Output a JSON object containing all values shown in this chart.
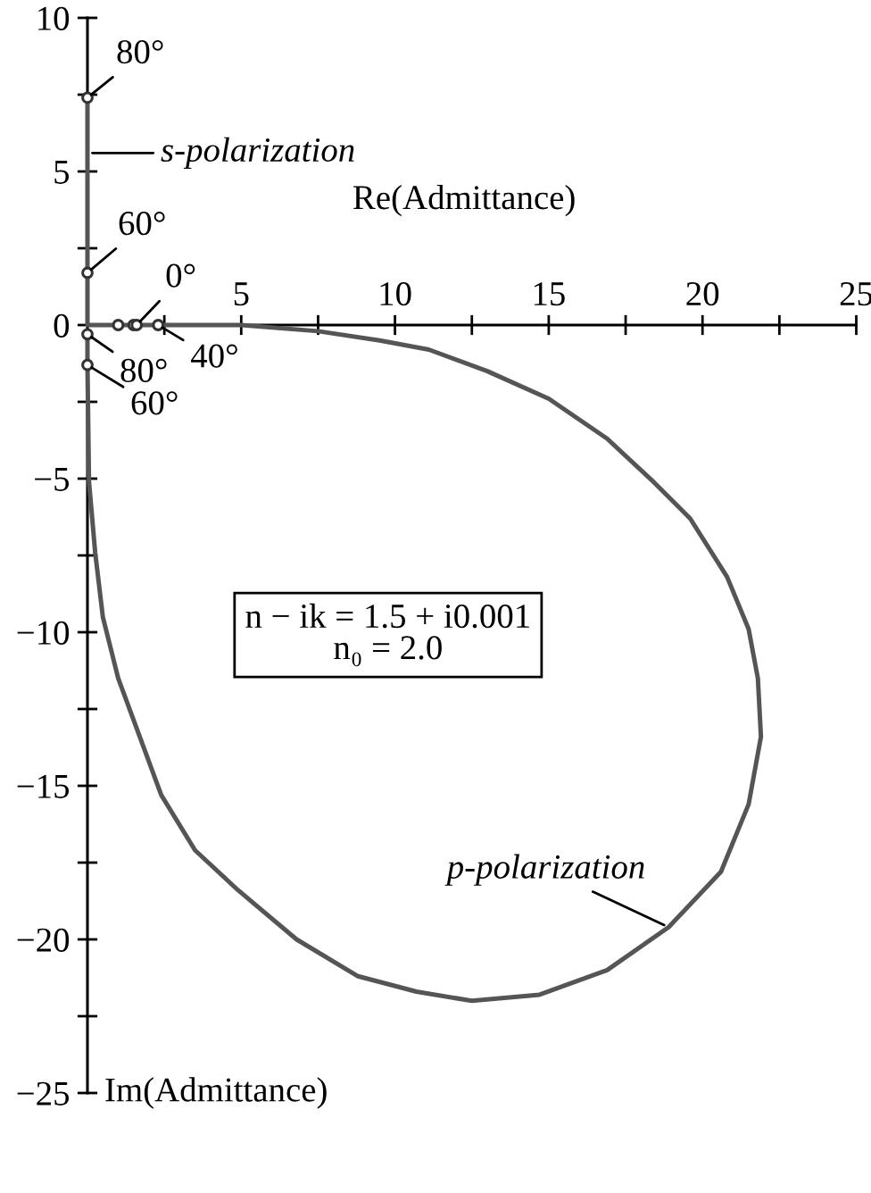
{
  "chart_data": {
    "type": "line",
    "xlabel": "Re(Admittance)",
    "ylabel": "Im(Admittance)",
    "xlim": [
      0,
      25
    ],
    "ylim": [
      -25,
      10
    ],
    "xticks": [
      {
        "value": 2.5,
        "label": null
      },
      5,
      {
        "value": 7.5,
        "label": null
      },
      10,
      {
        "value": 12.5,
        "label": null
      },
      15,
      {
        "value": 17.5,
        "label": null
      },
      20,
      {
        "value": 22.5,
        "label": null
      },
      25
    ],
    "yticks": [
      -25,
      {
        "value": -22.5,
        "label": null
      },
      -20,
      {
        "value": -17.5,
        "label": null
      },
      -15,
      {
        "value": -12.5,
        "label": null
      },
      -10,
      {
        "value": -7.5,
        "label": null
      },
      -5,
      {
        "value": -2.5,
        "label": null
      },
      0,
      {
        "value": 2.5,
        "label": null
      },
      5,
      {
        "value": 7.5,
        "label": null
      },
      10
    ],
    "series": [
      {
        "color": "#555555",
        "x": [
          1.5,
          1.0,
          0,
          0,
          0
        ],
        "values": [
          0,
          0,
          0,
          1.7,
          7.4
        ]
      },
      {
        "color": "#555555",
        "x": [
          1.6,
          2.3,
          3.5,
          5,
          7.5,
          9.5,
          11.1,
          13.0,
          15.0,
          16.9,
          18.4,
          19.6,
          20.8,
          21.5,
          21.8,
          21.9,
          21.5,
          20.6,
          18.9,
          16.9,
          14.7,
          12.5,
          10.7,
          8.8,
          6.8,
          4.9,
          3.5,
          2.4,
          1.0,
          0.5,
          0.25,
          0.05,
          0,
          0
        ],
        "values": [
          0,
          0,
          0,
          0,
          -0.2,
          -0.5,
          -0.8,
          -1.5,
          -2.4,
          -3.7,
          -5.1,
          -6.3,
          -8.2,
          -9.9,
          -11.5,
          -13.4,
          -15.6,
          -17.8,
          -19.6,
          -21.0,
          -21.8,
          -22.0,
          -21.7,
          -21.2,
          -20.0,
          -18.4,
          -17.1,
          -15.3,
          -11.5,
          -9.5,
          -7.4,
          -5.1,
          -1.3,
          -0.3
        ]
      },
      {
        "type": "scatter",
        "color": "#333333",
        "marker": "circle",
        "x": [
          1.5,
          1.0,
          1.6,
          2.3,
          0,
          0,
          0,
          0
        ],
        "values": [
          0,
          0,
          0,
          0,
          1.7,
          7.4,
          -0.3,
          -1.3
        ]
      }
    ],
    "annotations": [
      {
        "text": "80°",
        "x": 0,
        "y": 7.4
      },
      {
        "text": "s-polarization",
        "x": 0,
        "y": 5.6
      },
      {
        "text": "60°",
        "x": 0,
        "y": 1.7
      },
      {
        "text": "0°",
        "x": 1.6,
        "y": 0
      },
      {
        "text": "40°",
        "x": 2.3,
        "y": 0
      },
      {
        "text": "80°",
        "x": 0,
        "y": -0.3
      },
      {
        "text": "60°",
        "x": 0,
        "y": -1.3
      },
      {
        "text": "p-polarization",
        "x": 18.9,
        "y": -19.6
      },
      "n − ik = 1.5 + i0.001\nn₀ = 2.0"
    ]
  }
}
